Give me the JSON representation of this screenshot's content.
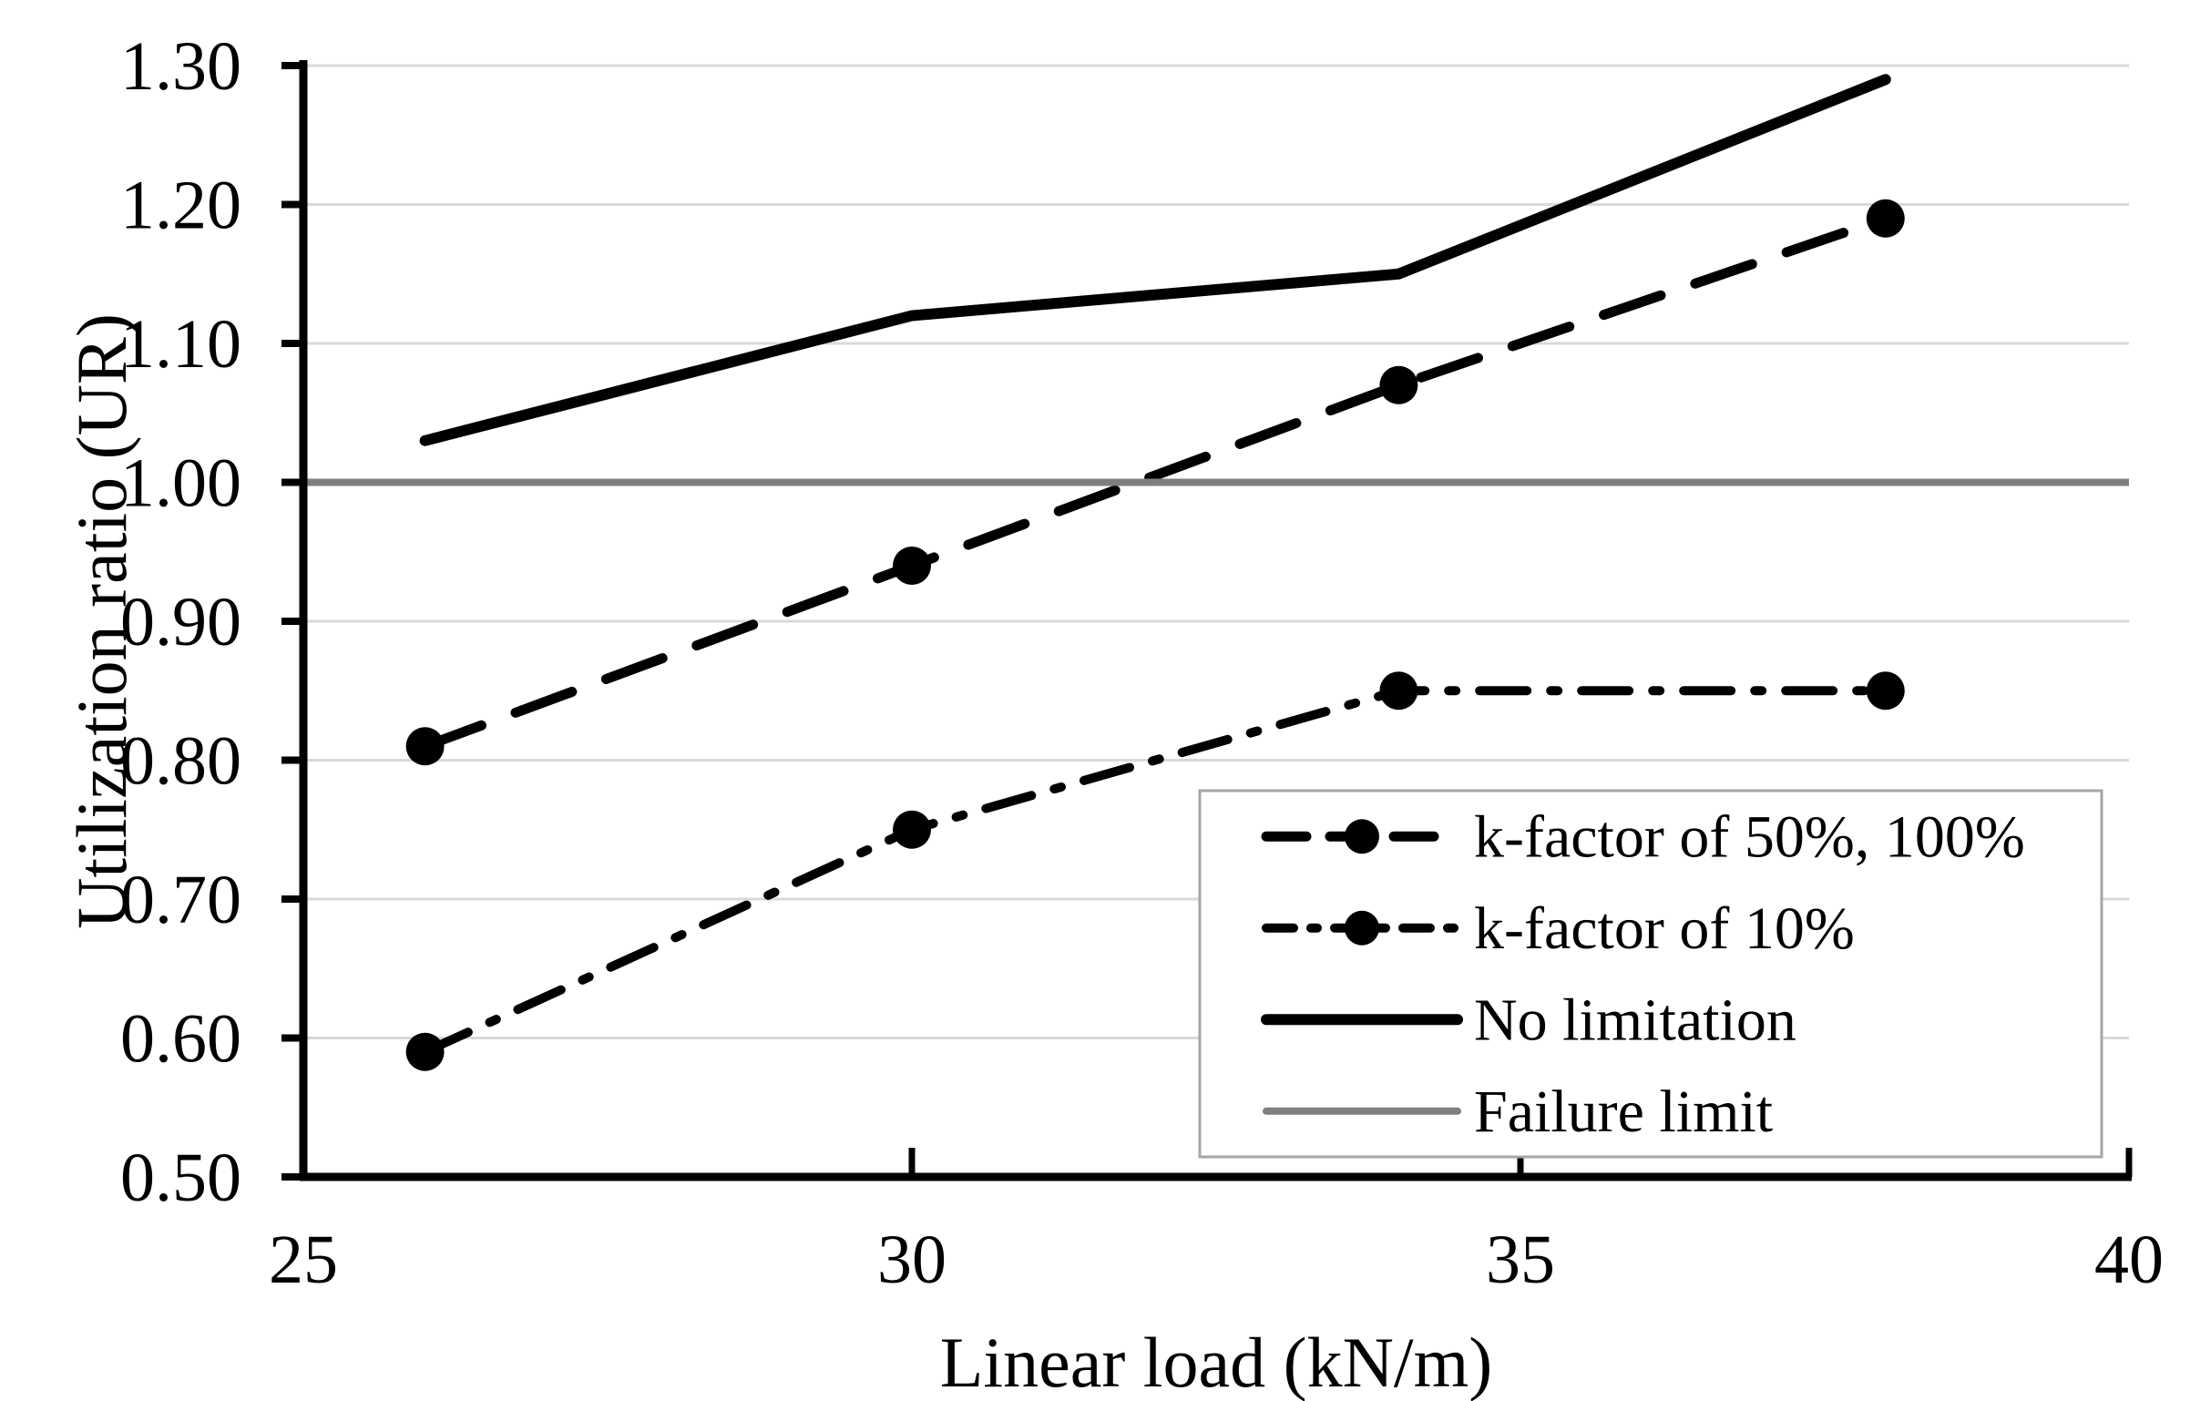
{
  "chart_data": {
    "type": "line",
    "title": "",
    "xlabel": "Linear load (kN/m)",
    "ylabel": "Utilization ratio (UR)",
    "xlim": [
      25,
      40
    ],
    "ylim": [
      0.5,
      1.3
    ],
    "x_ticks": [
      25,
      30,
      35,
      40
    ],
    "x_tick_labels": [
      "25",
      "30",
      "35",
      "40"
    ],
    "y_ticks": [
      0.5,
      0.6,
      0.7,
      0.8,
      0.9,
      1.0,
      1.1,
      1.2,
      1.3
    ],
    "y_tick_labels": [
      "0.50",
      "0.60",
      "0.70",
      "0.80",
      "0.90",
      "1.00",
      "1.10",
      "1.20",
      "1.30"
    ],
    "grid": "horizontal",
    "gridline_color": "#d9d9d9",
    "axis_color": "#000000",
    "background_color": "#ffffff",
    "x": [
      26,
      30,
      34,
      38
    ],
    "series": [
      {
        "name": "k-factor of 50%, 100%",
        "style": "dashed",
        "marker": "circle",
        "color": "#000000",
        "values": [
          0.81,
          0.94,
          1.07,
          1.19
        ]
      },
      {
        "name": "k-factor of 10%",
        "style": "dashdot",
        "marker": "circle",
        "color": "#000000",
        "values": [
          0.59,
          0.75,
          0.85,
          0.85
        ]
      },
      {
        "name": "No limitation",
        "style": "solid",
        "marker": "none",
        "color": "#000000",
        "values": [
          1.03,
          1.12,
          1.15,
          1.29
        ]
      },
      {
        "name": "Failure limit",
        "style": "solid",
        "marker": "none",
        "color": "#7f7f7f",
        "constant": 1.0,
        "span": [
          25,
          40
        ]
      }
    ],
    "legend": {
      "position": "inside-bottom-right",
      "border_color": "#a6a6a6",
      "background": "#ffffff",
      "entries": [
        "k-factor of 50%, 100%",
        "k-factor of 10%",
        "No limitation",
        "Failure limit"
      ]
    }
  }
}
